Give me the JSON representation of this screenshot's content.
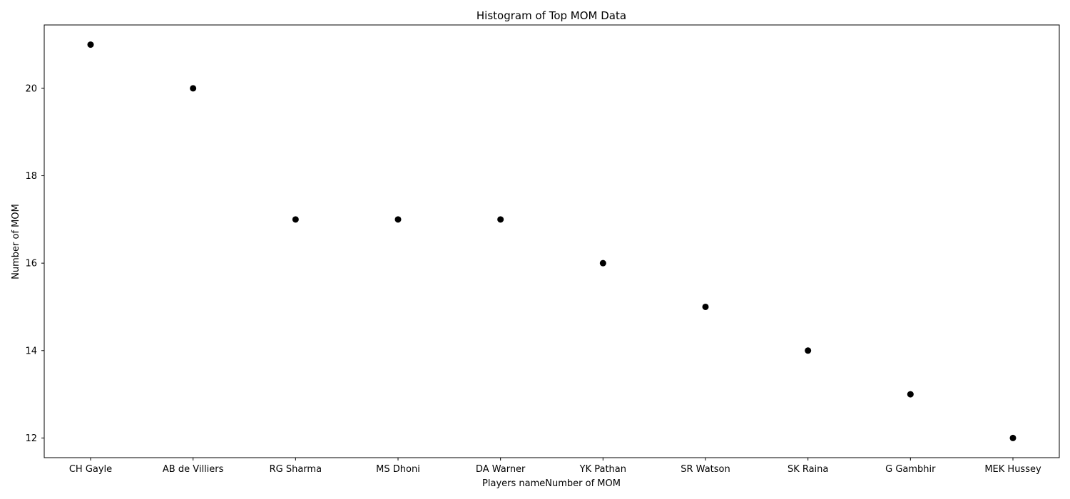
{
  "chart_data": {
    "type": "scatter",
    "title": "Histogram of Top MOM Data",
    "xlabel": "Players nameNumber of MOM",
    "ylabel": "Number of MOM",
    "categories": [
      "CH Gayle",
      "AB de Villiers",
      "RG Sharma",
      "MS Dhoni",
      "DA Warner",
      "YK Pathan",
      "SR Watson",
      "SK Raina",
      "G Gambhir",
      "MEK Hussey"
    ],
    "values": [
      21,
      20,
      17,
      17,
      17,
      16,
      15,
      14,
      13,
      12
    ],
    "ylim": [
      11.55,
      21.45
    ],
    "yticks": [
      12,
      14,
      16,
      18,
      20
    ],
    "grid": false,
    "marker_color": "#000000"
  }
}
